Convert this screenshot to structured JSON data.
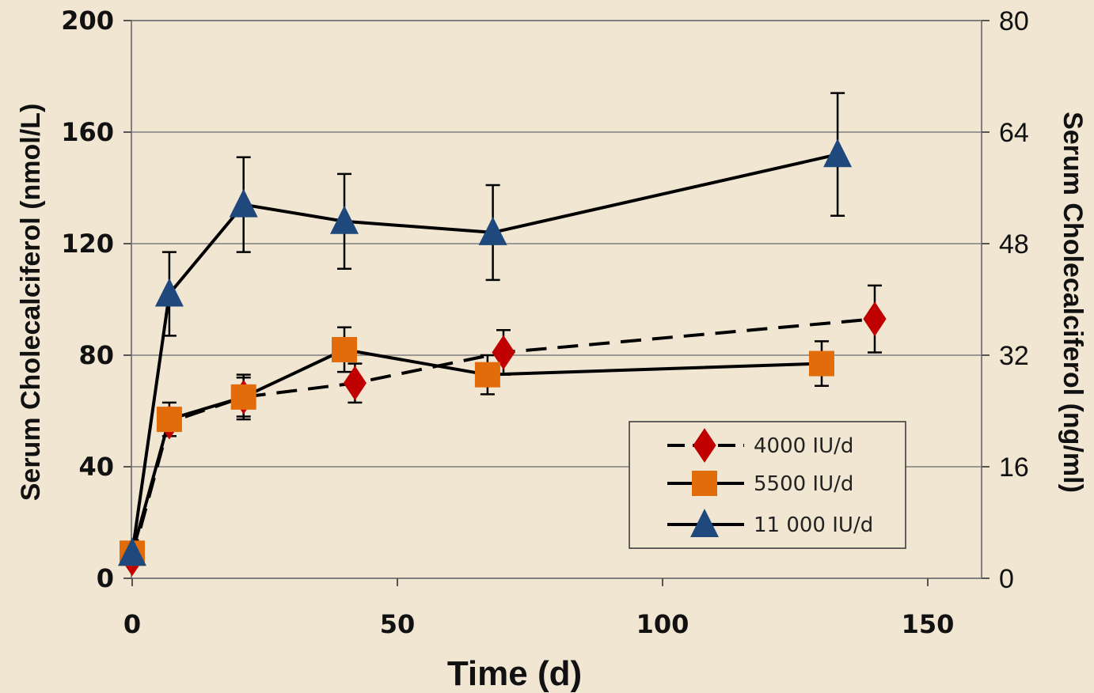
{
  "chart_data": {
    "type": "line",
    "xlabel": "Time (d)",
    "ylabel": "Serum Cholecalciferol (nmol/L)",
    "ylabel_right": "Serum Cholecalciferol (ng/ml)",
    "xlim": [
      0,
      160
    ],
    "ylim": [
      0,
      200
    ],
    "ylim_right": [
      0,
      80
    ],
    "x_ticks": [
      0,
      50,
      100,
      150
    ],
    "y_ticks": [
      0,
      40,
      80,
      120,
      160,
      200
    ],
    "y_ticks_right": [
      0,
      16,
      32,
      48,
      64,
      80
    ],
    "grid": "horizontal",
    "legend_position": "lower-right",
    "series": [
      {
        "name": "4000 IU/d",
        "marker": "diamond",
        "color": "#c00000",
        "line": "dashed",
        "points": [
          {
            "x": 0,
            "y": 7
          },
          {
            "x": 7,
            "y": 56,
            "err": 5
          },
          {
            "x": 21,
            "y": 65,
            "err": 8
          },
          {
            "x": 42,
            "y": 70,
            "err": 7
          },
          {
            "x": 70,
            "y": 81,
            "err": 8
          },
          {
            "x": 140,
            "y": 93,
            "err": 12
          }
        ]
      },
      {
        "name": "5500 IU/d",
        "marker": "square",
        "color": "#e36c0a",
        "line": "solid",
        "points": [
          {
            "x": 0,
            "y": 9
          },
          {
            "x": 7,
            "y": 57,
            "err": 6
          },
          {
            "x": 21,
            "y": 65,
            "err": 7
          },
          {
            "x": 40,
            "y": 82,
            "err": 8
          },
          {
            "x": 67,
            "y": 73,
            "err": 7
          },
          {
            "x": 130,
            "y": 77,
            "err": 8
          }
        ]
      },
      {
        "name": "11 000 IU/d",
        "marker": "triangle",
        "color": "#1f497d",
        "line": "solid",
        "points": [
          {
            "x": 0,
            "y": 9
          },
          {
            "x": 7,
            "y": 102,
            "err": 15
          },
          {
            "x": 21,
            "y": 134,
            "err": 17
          },
          {
            "x": 40,
            "y": 128,
            "err": 17
          },
          {
            "x": 68,
            "y": 124,
            "err": 17
          },
          {
            "x": 133,
            "y": 152,
            "err": 22
          }
        ]
      }
    ]
  }
}
